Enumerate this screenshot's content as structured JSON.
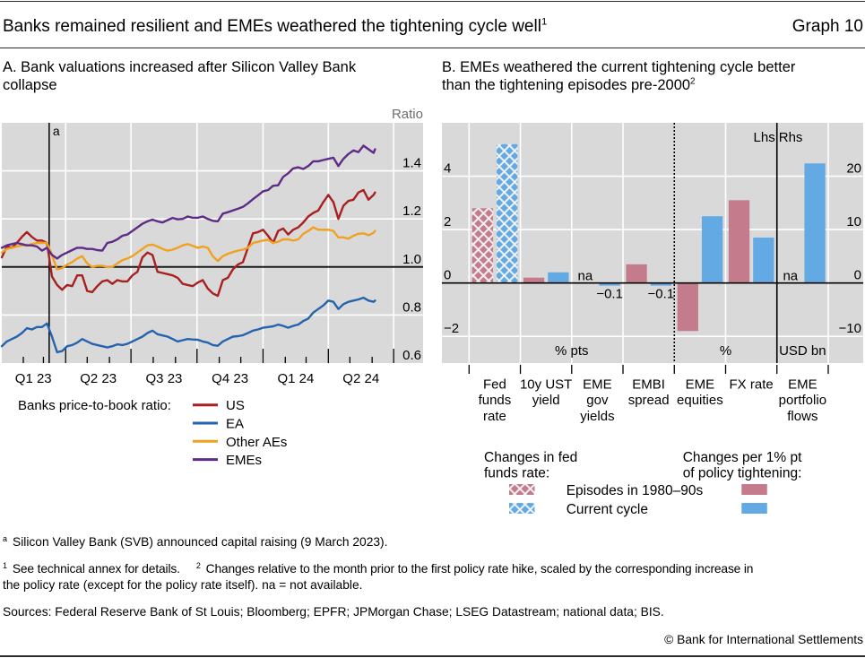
{
  "header": {
    "title": "Banks remained resilient and EMEs weathered the tightening cycle well",
    "title_footnote": "1",
    "graph_number": "Graph 10"
  },
  "panel_a": {
    "title_line1": "A. Bank valuations increased after Silicon Valley Bank",
    "title_line2": "collapse"
  },
  "panel_b": {
    "title_line1": "B. EMEs weathered the current tightening cycle better",
    "title_line2": "than the tightening episodes pre-2000",
    "title_footnote": "2"
  },
  "footnotes": {
    "a_marker": "a",
    "a_text": "Silicon Valley Bank (SVB) announced capital raising (9 March 2023).",
    "note1_marker": "1",
    "note1_text": "See technical annex for details.",
    "note2_marker": "2",
    "note2_line1": "Changes relative to the month prior to the first policy rate hike, scaled by the corresponding increase in",
    "note2_line2": "the policy rate (except for the policy rate itself). na = not available.",
    "sources": "Sources: Federal Reserve Bank of St Louis; Bloomberg; EPFR; JPMorgan Chase; LSEG Datastream; national data; BIS.",
    "copyright": "© Bank for International Settlements"
  },
  "chart_data": [
    {
      "type": "line",
      "title": "A. Bank valuations increased after Silicon Valley Bank collapse",
      "xlabel": "",
      "ylabel": "Ratio",
      "y_axis_side": "right",
      "ylim": [
        0.6,
        1.6
      ],
      "yticks": [
        0.6,
        0.8,
        1.0,
        1.2,
        1.4
      ],
      "ytick_labels": [
        "0.6",
        "0.8",
        "1.0",
        "1.2",
        "1.4"
      ],
      "xlim": [
        "2023-01-02",
        "2024-08-11"
      ],
      "xticks": "monthly",
      "quarters": [
        {
          "label": "Q1 23",
          "start": "2023-01-01",
          "end": "2023-04-01"
        },
        {
          "label": "Q2 23",
          "start": "2023-04-01",
          "end": "2023-07-01"
        },
        {
          "label": "Q3 23",
          "start": "2023-07-01",
          "end": "2023-10-01"
        },
        {
          "label": "Q4 23",
          "start": "2023-10-01",
          "end": "2024-01-01"
        },
        {
          "label": "Q1 24",
          "start": "2024-01-01",
          "end": "2024-04-01"
        },
        {
          "label": "Q2 24",
          "start": "2024-04-01",
          "end": "2024-07-01"
        }
      ],
      "grid": true,
      "reference_line": 1.0,
      "event_line": {
        "date": "2023-03-09",
        "label": "a"
      },
      "legend": {
        "title": "Banks price-to-book ratio:",
        "position": "bottom-left"
      },
      "x": [
        "2023-01-02",
        "2023-01-09",
        "2023-01-16",
        "2023-01-23",
        "2023-01-30",
        "2023-02-06",
        "2023-02-13",
        "2023-02-20",
        "2023-02-27",
        "2023-03-06",
        "2023-03-13",
        "2023-03-20",
        "2023-03-27",
        "2023-04-03",
        "2023-04-10",
        "2023-04-17",
        "2023-04-24",
        "2023-05-01",
        "2023-05-08",
        "2023-05-15",
        "2023-05-22",
        "2023-05-29",
        "2023-06-05",
        "2023-06-12",
        "2023-06-19",
        "2023-06-26",
        "2023-07-03",
        "2023-07-10",
        "2023-07-17",
        "2023-07-24",
        "2023-07-31",
        "2023-08-07",
        "2023-08-14",
        "2023-08-21",
        "2023-08-28",
        "2023-09-04",
        "2023-09-11",
        "2023-09-18",
        "2023-09-25",
        "2023-10-02",
        "2023-10-09",
        "2023-10-16",
        "2023-10-23",
        "2023-10-30",
        "2023-11-06",
        "2023-11-13",
        "2023-11-20",
        "2023-11-27",
        "2023-12-04",
        "2023-12-11",
        "2023-12-18",
        "2023-12-25",
        "2024-01-01",
        "2024-01-08",
        "2024-01-15",
        "2024-01-22",
        "2024-01-29",
        "2024-02-05",
        "2024-02-12",
        "2024-02-19",
        "2024-02-26",
        "2024-03-04",
        "2024-03-11",
        "2024-03-18",
        "2024-03-25",
        "2024-04-01",
        "2024-04-08",
        "2024-04-15",
        "2024-04-22",
        "2024-04-29",
        "2024-05-06",
        "2024-05-13",
        "2024-05-20",
        "2024-05-27",
        "2024-06-03",
        "2024-06-05"
      ],
      "series": [
        {
          "name": "US",
          "color": "#A8201F",
          "values": [
            1.04,
            1.085,
            1.08,
            1.1,
            1.125,
            1.145,
            1.125,
            1.11,
            1.11,
            1.1,
            0.96,
            0.925,
            0.905,
            0.925,
            0.92,
            0.965,
            0.965,
            0.9,
            0.895,
            0.92,
            0.94,
            0.945,
            0.93,
            0.945,
            0.94,
            0.94,
            0.965,
            0.98,
            1.04,
            1.06,
            1.05,
            0.98,
            0.975,
            0.97,
            0.965,
            0.955,
            0.93,
            0.925,
            0.92,
            0.935,
            0.945,
            0.91,
            0.89,
            0.88,
            0.945,
            0.955,
            0.99,
            1.01,
            1.02,
            1.08,
            1.14,
            1.145,
            1.155,
            1.13,
            1.1,
            1.15,
            1.16,
            1.135,
            1.155,
            1.165,
            1.185,
            1.21,
            1.225,
            1.235,
            1.27,
            1.3,
            1.27,
            1.2,
            1.255,
            1.275,
            1.28,
            1.31,
            1.32,
            1.28,
            1.3,
            1.31
          ]
        },
        {
          "name": "EA",
          "color": "#2563AE",
          "values": [
            0.67,
            0.69,
            0.7,
            0.71,
            0.725,
            0.745,
            0.74,
            0.75,
            0.75,
            0.765,
            0.71,
            0.645,
            0.65,
            0.67,
            0.675,
            0.685,
            0.7,
            0.69,
            0.68,
            0.675,
            0.67,
            0.665,
            0.67,
            0.678,
            0.675,
            0.68,
            0.69,
            0.7,
            0.71,
            0.725,
            0.735,
            0.72,
            0.715,
            0.71,
            0.7,
            0.69,
            0.695,
            0.7,
            0.698,
            0.697,
            0.69,
            0.685,
            0.675,
            0.672,
            0.69,
            0.7,
            0.71,
            0.712,
            0.716,
            0.725,
            0.735,
            0.74,
            0.747,
            0.75,
            0.753,
            0.76,
            0.755,
            0.747,
            0.755,
            0.76,
            0.775,
            0.785,
            0.81,
            0.825,
            0.84,
            0.86,
            0.855,
            0.825,
            0.845,
            0.855,
            0.86,
            0.865,
            0.872,
            0.86,
            0.855,
            0.86
          ]
        },
        {
          "name": "Other AEs",
          "color": "#F0A11E",
          "values": [
            1.06,
            1.075,
            1.08,
            1.085,
            1.09,
            1.09,
            1.095,
            1.1,
            1.1,
            1.1,
            1.05,
            0.99,
            0.995,
            1.01,
            1.02,
            1.035,
            1.045,
            1.015,
            1.0,
            1.005,
            1.005,
            1.0,
            1.0,
            1.015,
            1.028,
            1.035,
            1.045,
            1.06,
            1.075,
            1.09,
            1.093,
            1.085,
            1.075,
            1.068,
            1.072,
            1.08,
            1.09,
            1.095,
            1.088,
            1.08,
            1.085,
            1.08,
            1.045,
            1.025,
            1.045,
            1.055,
            1.062,
            1.068,
            1.072,
            1.08,
            1.1,
            1.105,
            1.11,
            1.113,
            1.1,
            1.105,
            1.115,
            1.115,
            1.11,
            1.115,
            1.138,
            1.15,
            1.165,
            1.155,
            1.155,
            1.155,
            1.15,
            1.123,
            1.123,
            1.118,
            1.13,
            1.138,
            1.14,
            1.132,
            1.142,
            1.15
          ]
        },
        {
          "name": "EMEs",
          "color": "#5E2B87",
          "values": [
            1.08,
            1.09,
            1.095,
            1.1,
            1.095,
            1.09,
            1.09,
            1.085,
            1.068,
            1.08,
            1.05,
            1.035,
            1.05,
            1.06,
            1.07,
            1.08,
            1.08,
            1.075,
            1.075,
            1.07,
            1.068,
            1.1,
            1.105,
            1.115,
            1.13,
            1.135,
            1.15,
            1.165,
            1.18,
            1.19,
            1.197,
            1.19,
            1.185,
            1.195,
            1.204,
            1.198,
            1.2,
            1.21,
            1.205,
            1.205,
            1.21,
            1.2,
            1.192,
            1.19,
            1.222,
            1.228,
            1.235,
            1.242,
            1.25,
            1.265,
            1.282,
            1.298,
            1.315,
            1.32,
            1.338,
            1.34,
            1.375,
            1.39,
            1.41,
            1.415,
            1.408,
            1.42,
            1.44,
            1.44,
            1.445,
            1.45,
            1.455,
            1.42,
            1.45,
            1.47,
            1.485,
            1.478,
            1.505,
            1.49,
            1.475,
            1.49
          ]
        }
      ]
    },
    {
      "type": "bar",
      "title": "B. EMEs weathered the current tightening cycle better than the tightening episodes pre-2000",
      "categories": [
        "Fed funds rate",
        "10y UST yield",
        "EME gov yields",
        "EMBI spread",
        "EME equities",
        "FX rate",
        "EME portfolio flows"
      ],
      "category_label_lines": [
        [
          "Fed",
          "funds",
          "rate"
        ],
        [
          "10y UST",
          "yield"
        ],
        [
          "EME",
          "gov",
          "yields"
        ],
        [
          "EMBI",
          "spread"
        ],
        [
          "EME",
          "equities"
        ],
        [
          "FX rate"
        ],
        [
          "EME",
          "portfolio",
          "flows"
        ]
      ],
      "axis": [
        "lhs",
        "lhs",
        "lhs",
        "lhs",
        "lhs",
        "lhs",
        "rhs"
      ],
      "unit_groups": [
        {
          "label": "% pts",
          "first": 0,
          "last": 3
        },
        {
          "label": "%",
          "first": 4,
          "last": 5
        },
        {
          "label": "USD bn",
          "first": 6,
          "last": 6
        }
      ],
      "ylim_lhs": [
        -3,
        6
      ],
      "yticks_lhs": [
        -2,
        0,
        2,
        4
      ],
      "ytick_labels_lhs": [
        "−2",
        "0",
        "2",
        "4"
      ],
      "ylim_rhs": [
        -15,
        30
      ],
      "yticks_rhs": [
        -10,
        0,
        10,
        20
      ],
      "ytick_labels_rhs": [
        "−10",
        "0",
        "10",
        "20"
      ],
      "axis_labels": {
        "lhs": "Lhs",
        "rhs": "Rhs"
      },
      "grid": true,
      "hatched_categories": [
        0
      ],
      "series": [
        {
          "name": "Episodes in 1980–90s",
          "color": "#C47B8B",
          "values": [
            2.8,
            0.2,
            null,
            0.7,
            -1.8,
            3.1,
            null
          ]
        },
        {
          "name": "Current cycle",
          "color": "#63A9E3",
          "values": [
            5.2,
            0.4,
            -0.1,
            -0.1,
            2.5,
            1.7,
            22.4
          ]
        }
      ],
      "data_labels": [
        {
          "category": 2,
          "series": 0,
          "text": "na"
        },
        {
          "category": 2,
          "series": 1,
          "text": "−0.1"
        },
        {
          "category": 3,
          "series": 1,
          "text": "−0.1"
        },
        {
          "category": 6,
          "series": 0,
          "text": "na"
        }
      ],
      "legend": {
        "position": "bottom",
        "hatched_title": [
          "Changes in fed",
          "funds rate:"
        ],
        "solid_title": [
          "Changes per 1% pt",
          "of policy tightening:"
        ]
      }
    }
  ]
}
